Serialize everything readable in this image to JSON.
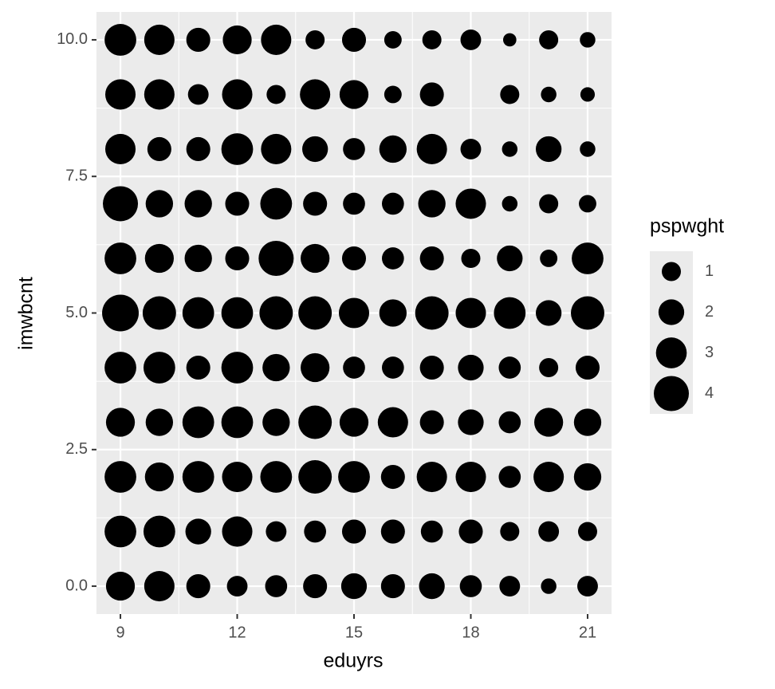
{
  "chart_data": {
    "type": "scatter",
    "x_label": "eduyrs",
    "y_label": "imwbcnt",
    "color": "#000000",
    "x": [
      9,
      10,
      11,
      12,
      13,
      14,
      15,
      16,
      17,
      18,
      19,
      20,
      21,
      9,
      10,
      11,
      12,
      13,
      14,
      15,
      16,
      17,
      19,
      20,
      21,
      9,
      10,
      11,
      12,
      13,
      14,
      15,
      16,
      17,
      18,
      19,
      20,
      21,
      9,
      10,
      11,
      12,
      13,
      14,
      15,
      16,
      17,
      18,
      19,
      20,
      21,
      9,
      10,
      11,
      12,
      13,
      14,
      15,
      16,
      17,
      18,
      19,
      20,
      21,
      9,
      10,
      11,
      12,
      13,
      14,
      15,
      16,
      17,
      18,
      19,
      20,
      21,
      9,
      10,
      11,
      12,
      13,
      14,
      15,
      16,
      17,
      18,
      19,
      20,
      21,
      9,
      10,
      11,
      12,
      13,
      14,
      15,
      16,
      17,
      18,
      19,
      20,
      21,
      9,
      10,
      11,
      12,
      13,
      14,
      15,
      16,
      17,
      18,
      19,
      20,
      21,
      9,
      10,
      11,
      12,
      13,
      14,
      15,
      16,
      17,
      18,
      19,
      20,
      21,
      9,
      10,
      11,
      12,
      13,
      14,
      15,
      16,
      17,
      18,
      19,
      20,
      21
    ],
    "y": [
      10,
      10,
      10,
      10,
      10,
      10,
      10,
      10,
      10,
      10,
      10,
      10,
      10,
      9,
      9,
      9,
      9,
      9,
      9,
      9,
      9,
      9,
      9,
      9,
      9,
      8,
      8,
      8,
      8,
      8,
      8,
      8,
      8,
      8,
      8,
      8,
      8,
      8,
      7,
      7,
      7,
      7,
      7,
      7,
      7,
      7,
      7,
      7,
      7,
      7,
      7,
      6,
      6,
      6,
      6,
      6,
      6,
      6,
      6,
      6,
      6,
      6,
      6,
      6,
      5,
      5,
      5,
      5,
      5,
      5,
      5,
      5,
      5,
      5,
      5,
      5,
      5,
      4,
      4,
      4,
      4,
      4,
      4,
      4,
      4,
      4,
      4,
      4,
      4,
      4,
      3,
      3,
      3,
      3,
      3,
      3,
      3,
      3,
      3,
      3,
      3,
      3,
      3,
      2,
      2,
      2,
      2,
      2,
      2,
      2,
      2,
      2,
      2,
      2,
      2,
      2,
      1,
      1,
      1,
      1,
      1,
      1,
      1,
      1,
      1,
      1,
      1,
      1,
      1,
      0,
      0,
      0,
      0,
      0,
      0,
      0,
      0,
      0,
      0,
      0,
      0,
      0
    ],
    "sizes": [
      3.2,
      2.9,
      1.7,
      2.6,
      2.9,
      1.0,
      1.7,
      0.8,
      1.0,
      1.2,
      0.4,
      1.0,
      0.6,
      2.9,
      2.9,
      1.2,
      2.9,
      1.0,
      2.9,
      2.6,
      0.8,
      1.7,
      1.0,
      0.6,
      0.5,
      2.9,
      1.7,
      1.7,
      3.2,
      2.9,
      2.0,
      1.4,
      2.3,
      2.9,
      1.2,
      0.6,
      2.0,
      0.6,
      4.0,
      2.3,
      2.3,
      1.7,
      3.2,
      1.7,
      1.4,
      1.4,
      2.3,
      2.9,
      0.6,
      1.0,
      0.8,
      3.2,
      2.6,
      2.3,
      1.7,
      4.0,
      2.6,
      1.7,
      1.4,
      1.7,
      1.0,
      2.0,
      0.8,
      3.2,
      4.4,
      3.6,
      3.2,
      3.2,
      3.6,
      3.6,
      2.9,
      2.3,
      3.6,
      2.9,
      3.2,
      2.0,
      3.6,
      3.2,
      3.2,
      1.7,
      3.2,
      2.3,
      2.6,
      1.4,
      1.4,
      1.7,
      2.0,
      1.4,
      1.0,
      1.7,
      2.6,
      2.3,
      3.2,
      3.2,
      2.3,
      3.6,
      2.6,
      2.9,
      1.7,
      2.0,
      1.4,
      2.6,
      2.3,
      3.2,
      2.6,
      3.2,
      2.9,
      3.2,
      3.6,
      3.2,
      1.7,
      2.9,
      2.9,
      1.4,
      2.9,
      2.3,
      3.2,
      3.2,
      2.0,
      2.9,
      1.2,
      1.4,
      1.7,
      1.7,
      1.4,
      1.7,
      1.0,
      1.2,
      1.0,
      2.6,
      2.9,
      1.7,
      1.2,
      1.4,
      1.7,
      2.0,
      1.7,
      2.0,
      1.4,
      1.2,
      0.6,
      1.2
    ],
    "xlim": [
      8.385,
      21.615
    ],
    "ylim": [
      -0.51,
      10.51
    ],
    "xticks": [
      9,
      12,
      15,
      18,
      21
    ],
    "yticks": [
      {
        "value": 0,
        "label": "0.0"
      },
      {
        "value": 2.5,
        "label": "2.5"
      },
      {
        "value": 5,
        "label": "5.0"
      },
      {
        "value": 7.5,
        "label": "7.5"
      },
      {
        "value": 10,
        "label": "10.0"
      }
    ],
    "grid": true,
    "size_legend": {
      "title": "pspwght",
      "values": [
        1,
        2,
        3,
        4
      ]
    }
  }
}
